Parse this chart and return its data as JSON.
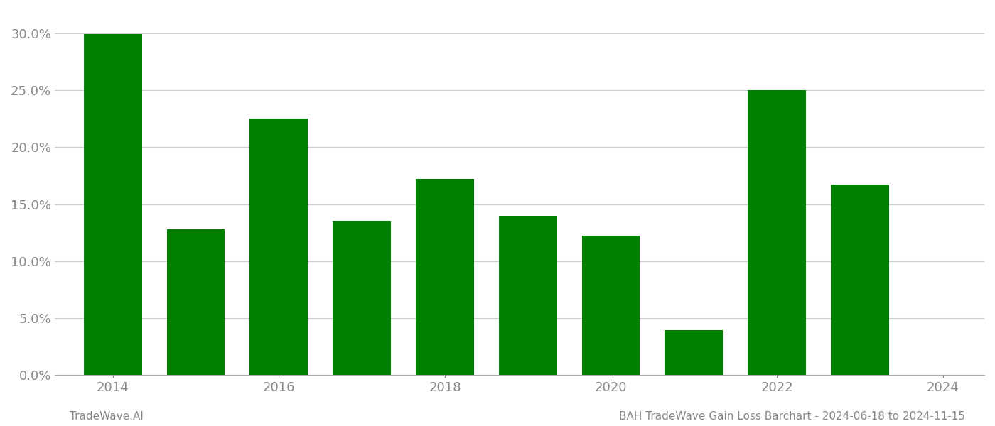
{
  "years": [
    2014,
    2015,
    2016,
    2017,
    2018,
    2019,
    2020,
    2021,
    2022,
    2023
  ],
  "values": [
    0.2995,
    0.128,
    0.225,
    0.1355,
    0.172,
    0.1395,
    0.122,
    0.0395,
    0.25,
    0.167
  ],
  "bar_color": "#008000",
  "background_color": "#ffffff",
  "ylim": [
    0.0,
    0.32
  ],
  "yticks": [
    0.0,
    0.05,
    0.1,
    0.15,
    0.2,
    0.25,
    0.3
  ],
  "xticks": [
    2014,
    2016,
    2018,
    2020,
    2022,
    2024
  ],
  "xlim": [
    2013.3,
    2024.5
  ],
  "xlabel": "",
  "ylabel": "",
  "footer_left": "TradeWave.AI",
  "footer_right": "BAH TradeWave Gain Loss Barchart - 2024-06-18 to 2024-11-15",
  "footer_fontsize": 11,
  "grid_color": "#cccccc",
  "axis_color": "#aaaaaa",
  "tick_color": "#888888",
  "bar_width": 0.7
}
